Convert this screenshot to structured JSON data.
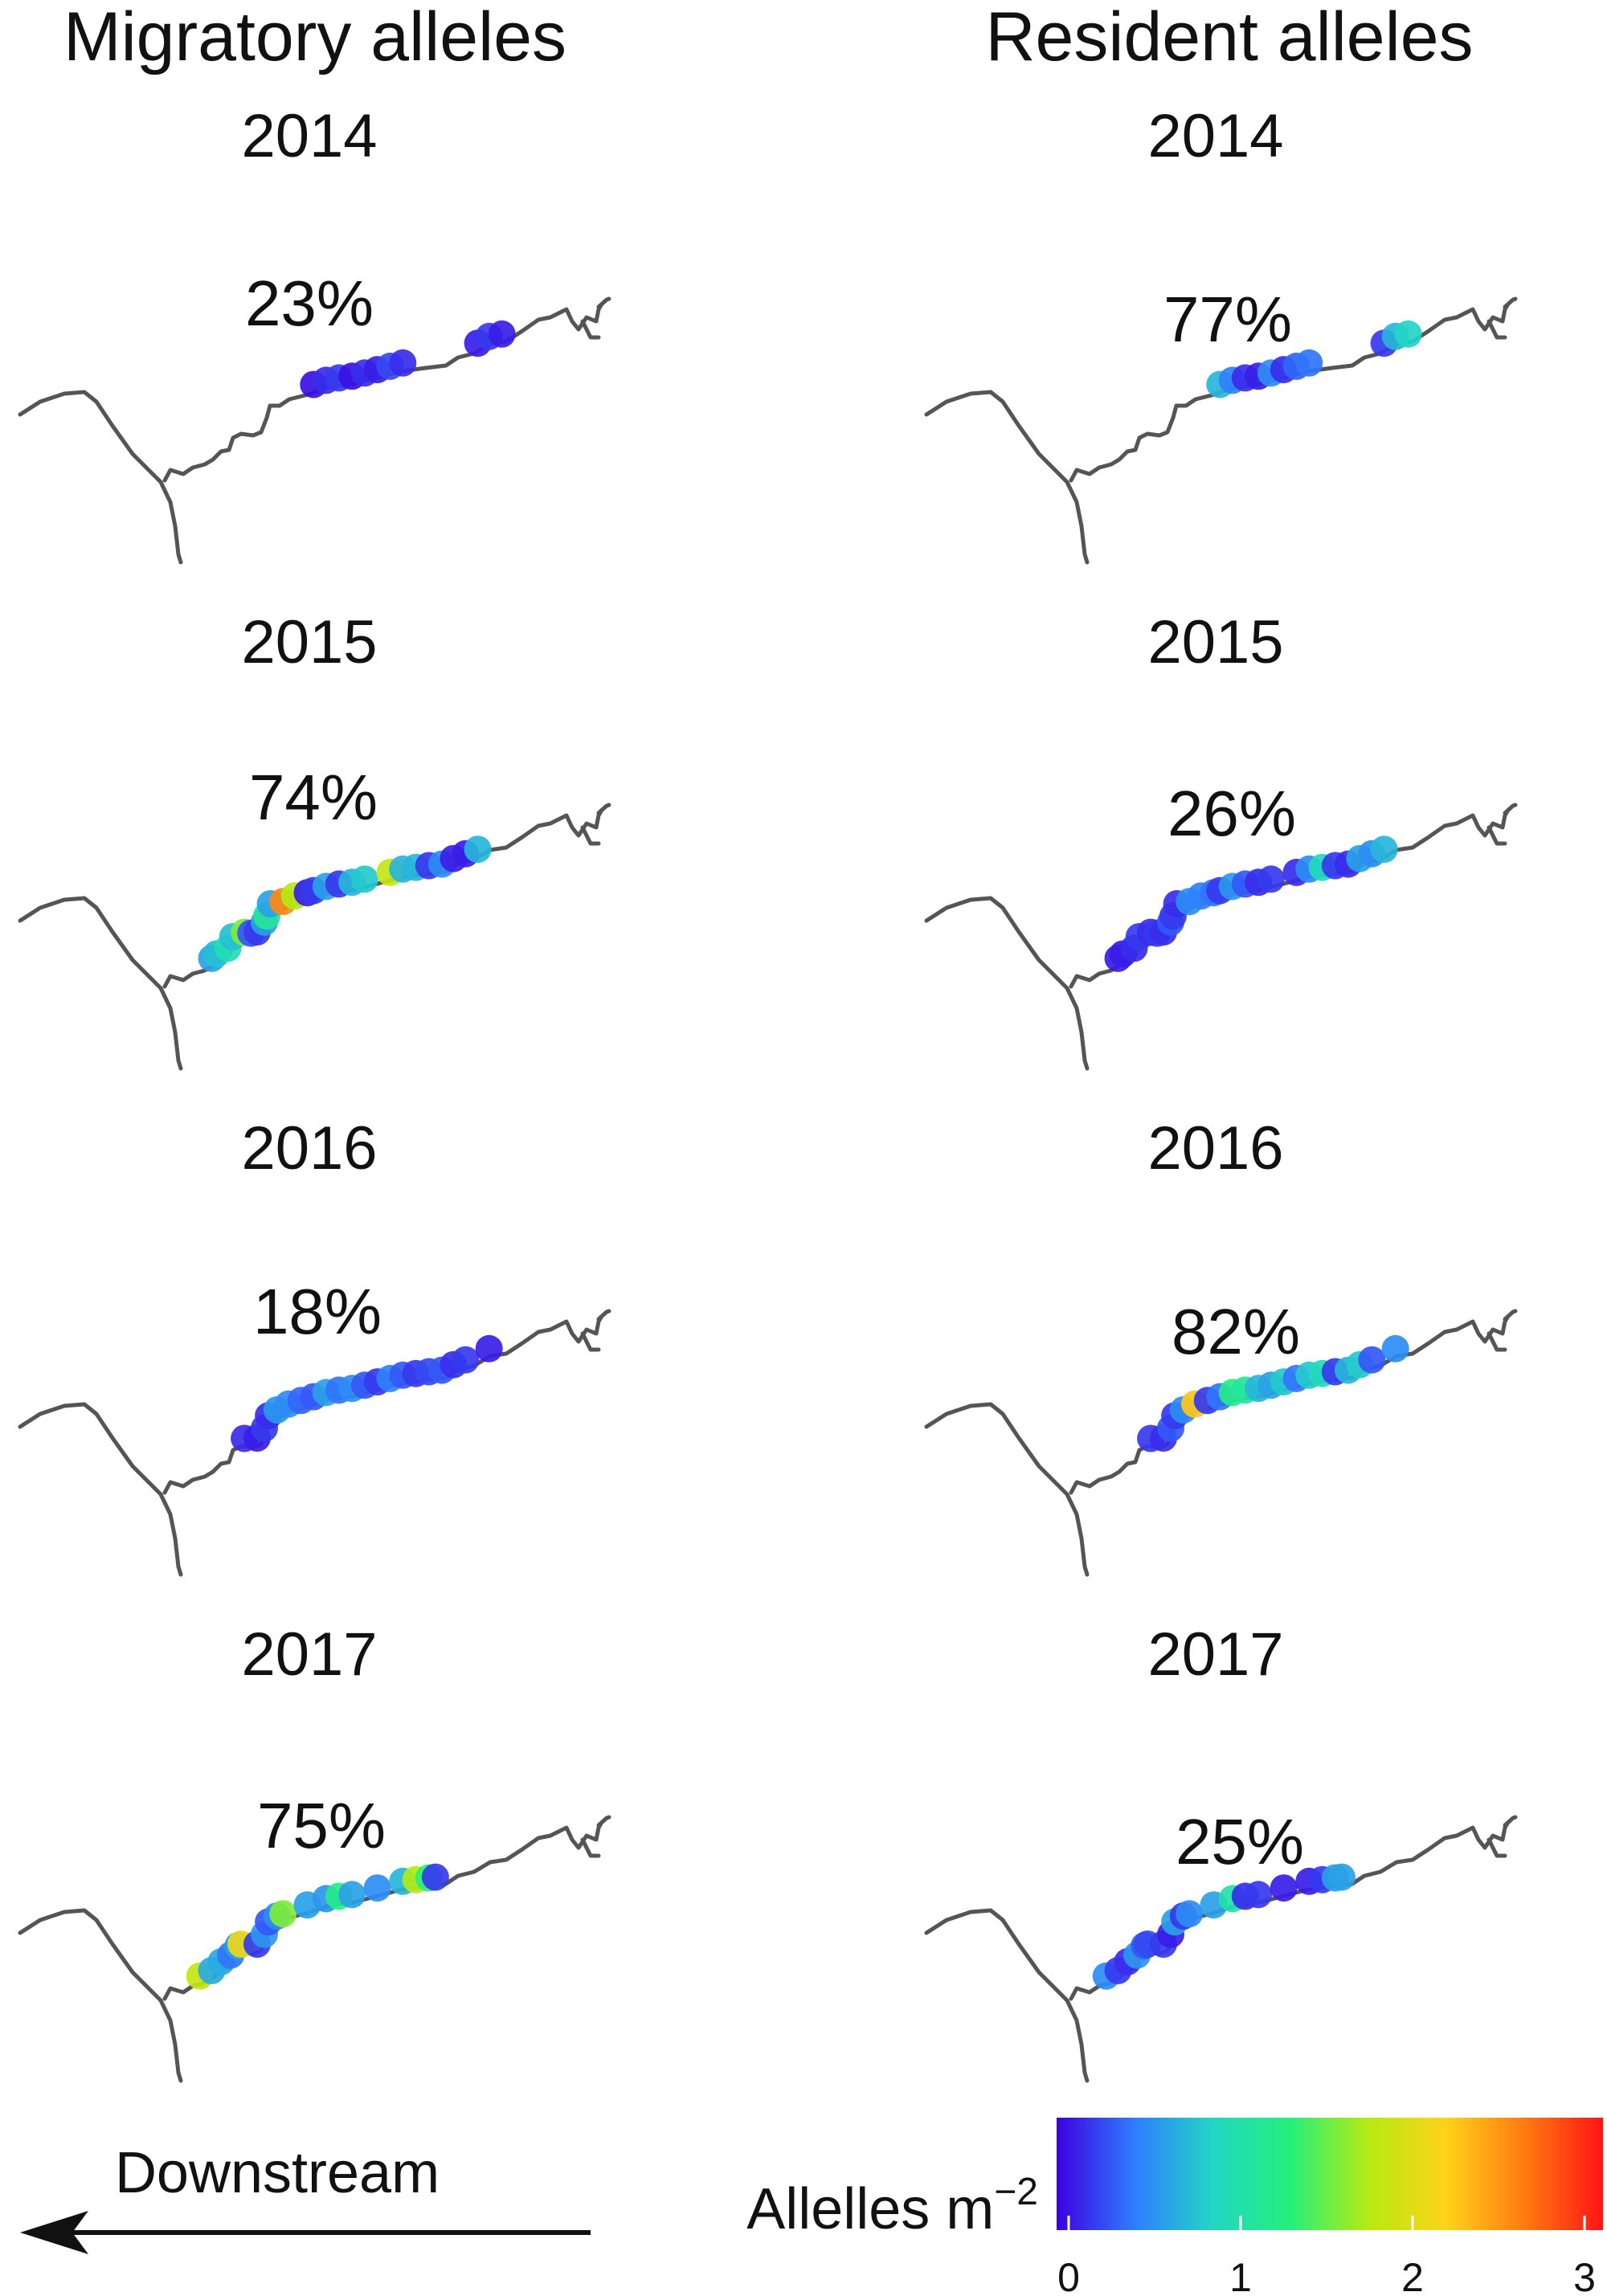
{
  "columns": [
    {
      "key": "migratory",
      "title": "Migratory alleles"
    },
    {
      "key": "resident",
      "title": "Resident alleles"
    }
  ],
  "colorbar": {
    "label": "Allelles m",
    "label_sup": "−2",
    "ticks": [
      "0",
      "1",
      "2",
      "3"
    ],
    "range": [
      0,
      3
    ],
    "stops": [
      "#3b00e0",
      "#2f7dff",
      "#22d6c4",
      "#25f07a",
      "#b7ea10",
      "#ffd21a",
      "#ff7a10",
      "#ff1414"
    ]
  },
  "arrow": {
    "label": "Downstream"
  },
  "chart_data": [
    {
      "type": "scatter",
      "column": "migratory",
      "year": "2014",
      "percent": "23%",
      "points": [
        [
          0.48,
          0.05
        ],
        [
          0.5,
          0.15
        ],
        [
          0.52,
          0.2
        ],
        [
          0.54,
          0.05
        ],
        [
          0.56,
          0.15
        ],
        [
          0.58,
          0.1
        ],
        [
          0.6,
          0.25
        ],
        [
          0.62,
          0.15
        ],
        [
          0.74,
          0.1
        ],
        [
          0.76,
          0.2
        ],
        [
          0.78,
          0.1
        ]
      ]
    },
    {
      "type": "scatter",
      "column": "resident",
      "year": "2014",
      "percent": "77%",
      "points": [
        [
          0.48,
          0.7
        ],
        [
          0.5,
          0.45
        ],
        [
          0.52,
          0.15
        ],
        [
          0.54,
          0.1
        ],
        [
          0.56,
          0.5
        ],
        [
          0.58,
          0.15
        ],
        [
          0.6,
          0.35
        ],
        [
          0.62,
          0.4
        ],
        [
          0.74,
          0.2
        ],
        [
          0.76,
          0.7
        ],
        [
          0.78,
          0.85
        ]
      ]
    },
    {
      "type": "scatter",
      "column": "migratory",
      "year": "2015",
      "percent": "74%",
      "points": [
        [
          0.27,
          0.6
        ],
        [
          0.28,
          0.75
        ],
        [
          0.3,
          0.95
        ],
        [
          0.32,
          0.75
        ],
        [
          0.34,
          1.55
        ],
        [
          0.35,
          0.3
        ],
        [
          0.36,
          0.2
        ],
        [
          0.38,
          0.6
        ],
        [
          0.39,
          1.1
        ],
        [
          0.41,
          0.6
        ],
        [
          0.43,
          2.5
        ],
        [
          0.45,
          1.7
        ],
        [
          0.47,
          0.1
        ],
        [
          0.48,
          0.2
        ],
        [
          0.5,
          0.6
        ],
        [
          0.52,
          0.2
        ],
        [
          0.54,
          0.7
        ],
        [
          0.56,
          0.8
        ],
        [
          0.6,
          1.8
        ],
        [
          0.62,
          0.7
        ],
        [
          0.64,
          0.7
        ],
        [
          0.66,
          0.2
        ],
        [
          0.68,
          0.5
        ],
        [
          0.7,
          0.1
        ],
        [
          0.72,
          0.1
        ],
        [
          0.74,
          0.7
        ]
      ]
    },
    {
      "type": "scatter",
      "column": "resident",
      "year": "2015",
      "percent": "26%",
      "points": [
        [
          0.27,
          0.1
        ],
        [
          0.28,
          0.1
        ],
        [
          0.3,
          0.15
        ],
        [
          0.32,
          0.2
        ],
        [
          0.34,
          0.15
        ],
        [
          0.35,
          0.2
        ],
        [
          0.36,
          0.15
        ],
        [
          0.38,
          0.3
        ],
        [
          0.39,
          0.2
        ],
        [
          0.41,
          0.15
        ],
        [
          0.43,
          0.5
        ],
        [
          0.45,
          0.45
        ],
        [
          0.47,
          0.4
        ],
        [
          0.48,
          0.2
        ],
        [
          0.5,
          0.55
        ],
        [
          0.52,
          0.3
        ],
        [
          0.54,
          0.15
        ],
        [
          0.56,
          0.2
        ],
        [
          0.6,
          0.15
        ],
        [
          0.62,
          0.5
        ],
        [
          0.64,
          0.9
        ],
        [
          0.66,
          0.2
        ],
        [
          0.68,
          0.15
        ],
        [
          0.7,
          0.6
        ],
        [
          0.72,
          0.5
        ],
        [
          0.74,
          0.7
        ]
      ]
    },
    {
      "type": "scatter",
      "column": "migratory",
      "year": "2016",
      "percent": "18%",
      "points": [
        [
          0.34,
          0.15
        ],
        [
          0.36,
          0.1
        ],
        [
          0.38,
          0.2
        ],
        [
          0.4,
          0.15
        ],
        [
          0.42,
          0.55
        ],
        [
          0.44,
          0.5
        ],
        [
          0.46,
          0.35
        ],
        [
          0.48,
          0.3
        ],
        [
          0.5,
          0.6
        ],
        [
          0.52,
          0.4
        ],
        [
          0.54,
          0.5
        ],
        [
          0.56,
          0.3
        ],
        [
          0.58,
          0.2
        ],
        [
          0.6,
          0.45
        ],
        [
          0.62,
          0.3
        ],
        [
          0.64,
          0.2
        ],
        [
          0.66,
          0.25
        ],
        [
          0.68,
          0.3
        ],
        [
          0.7,
          0.15
        ],
        [
          0.72,
          0.2
        ],
        [
          0.76,
          0.1
        ]
      ]
    },
    {
      "type": "scatter",
      "column": "resident",
      "year": "2016",
      "percent": "82%",
      "points": [
        [
          0.34,
          0.2
        ],
        [
          0.36,
          0.15
        ],
        [
          0.38,
          0.3
        ],
        [
          0.4,
          0.2
        ],
        [
          0.42,
          0.5
        ],
        [
          0.44,
          2.2
        ],
        [
          0.46,
          0.2
        ],
        [
          0.48,
          0.4
        ],
        [
          0.5,
          1.2
        ],
        [
          0.52,
          1.1
        ],
        [
          0.54,
          0.7
        ],
        [
          0.56,
          0.6
        ],
        [
          0.58,
          0.8
        ],
        [
          0.6,
          0.4
        ],
        [
          0.62,
          0.8
        ],
        [
          0.64,
          0.9
        ],
        [
          0.66,
          0.2
        ],
        [
          0.68,
          0.7
        ],
        [
          0.7,
          0.8
        ],
        [
          0.72,
          0.3
        ],
        [
          0.76,
          0.5
        ]
      ]
    },
    {
      "type": "scatter",
      "column": "migratory",
      "year": "2017",
      "percent": "75%",
      "points": [
        [
          0.25,
          1.8
        ],
        [
          0.27,
          0.65
        ],
        [
          0.29,
          0.65
        ],
        [
          0.31,
          0.4
        ],
        [
          0.33,
          0.6
        ],
        [
          0.335,
          2.05
        ],
        [
          0.36,
          0.2
        ],
        [
          0.38,
          0.55
        ],
        [
          0.4,
          0.3
        ],
        [
          0.42,
          0.5
        ],
        [
          0.43,
          1.55
        ],
        [
          0.47,
          0.6
        ],
        [
          0.5,
          0.55
        ],
        [
          0.52,
          1.2
        ],
        [
          0.54,
          0.6
        ],
        [
          0.58,
          0.5
        ],
        [
          0.62,
          0.7
        ],
        [
          0.64,
          1.7
        ],
        [
          0.66,
          1.3
        ],
        [
          0.67,
          0.2
        ]
      ]
    },
    {
      "type": "scatter",
      "column": "resident",
      "year": "2017",
      "percent": "25%",
      "points": [
        [
          0.25,
          0.5
        ],
        [
          0.27,
          0.2
        ],
        [
          0.29,
          0.15
        ],
        [
          0.31,
          0.55
        ],
        [
          0.33,
          0.3
        ],
        [
          0.335,
          0.25
        ],
        [
          0.36,
          0.2
        ],
        [
          0.38,
          0.1
        ],
        [
          0.4,
          0.6
        ],
        [
          0.42,
          0.2
        ],
        [
          0.43,
          0.5
        ],
        [
          0.47,
          0.6
        ],
        [
          0.5,
          1.0
        ],
        [
          0.52,
          0.15
        ],
        [
          0.54,
          0.2
        ],
        [
          0.58,
          0.1
        ],
        [
          0.62,
          0.1
        ],
        [
          0.64,
          0.2
        ],
        [
          0.66,
          0.6
        ],
        [
          0.67,
          0.6
        ]
      ]
    }
  ]
}
